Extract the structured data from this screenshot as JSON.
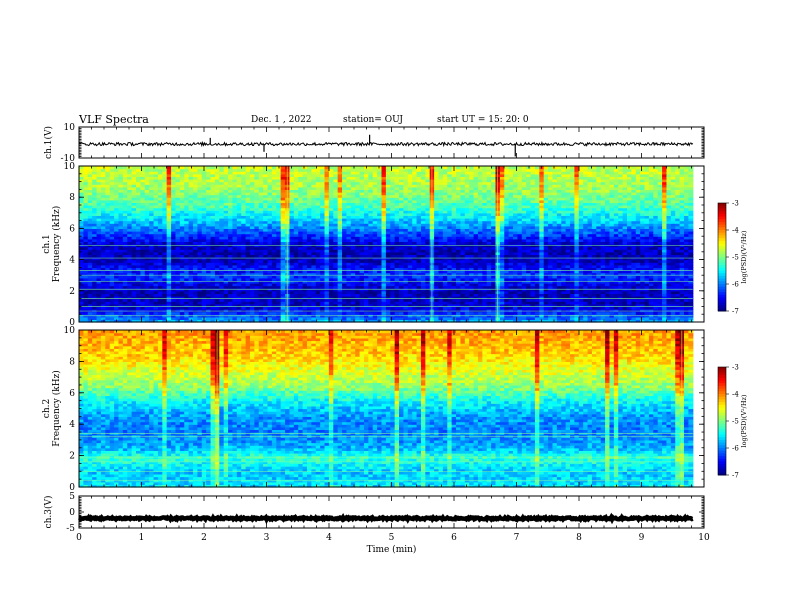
{
  "header": {
    "title": "VLF Spectra",
    "date": "Dec. 1  , 2022",
    "station": "station= OUJ",
    "start_ut": "start  UT  =   15: 20: 0"
  },
  "chart_data": [
    {
      "id": "ch1-waveform",
      "type": "line",
      "ylabel": "ch.1(V)",
      "ylim": [
        -10,
        10
      ],
      "yticks": [
        10,
        -10
      ],
      "xlim": [
        0,
        10
      ],
      "data_extent_min": 9.82,
      "baseline": -1,
      "amplitude": 1,
      "spikes": [
        {
          "x": 2.1,
          "y": 3
        },
        {
          "x": 2.96,
          "y": -6
        },
        {
          "x": 4.65,
          "y": 5
        },
        {
          "x": 6.98,
          "y": -9
        }
      ]
    },
    {
      "id": "ch1-spectrogram",
      "type": "heatmap",
      "ylabel_top": "ch.1",
      "ylabel": "Frequency  (kHz)",
      "ylim": [
        0,
        10
      ],
      "yticks": [
        0,
        2,
        4,
        6,
        8,
        10
      ],
      "xlim": [
        0,
        10
      ],
      "data_extent_min": 9.82,
      "colorbar": {
        "label": "log(PSD)(V²/Hz)",
        "range": [
          -7,
          -3
        ],
        "ticks": [
          -3,
          -4,
          -5,
          -6,
          -7
        ]
      },
      "profile": [
        {
          "f": 0.0,
          "v": -5.8
        },
        {
          "f": 0.5,
          "v": -6.3
        },
        {
          "f": 1.0,
          "v": -6.7
        },
        {
          "f": 2.0,
          "v": -6.8
        },
        {
          "f": 3.0,
          "v": -6.3
        },
        {
          "f": 3.5,
          "v": -6.5
        },
        {
          "f": 4.0,
          "v": -6.8
        },
        {
          "f": 5.0,
          "v": -6.7
        },
        {
          "f": 5.7,
          "v": -6.2
        },
        {
          "f": 6.5,
          "v": -5.7
        },
        {
          "f": 7.5,
          "v": -5.2
        },
        {
          "f": 8.5,
          "v": -4.9
        },
        {
          "f": 10.0,
          "v": -4.7
        }
      ],
      "lines": [
        0.4,
        0.7,
        1.0,
        1.5,
        2.1,
        2.6,
        3.0,
        3.3,
        4.1,
        4.9
      ]
    },
    {
      "id": "ch2-spectrogram",
      "type": "heatmap",
      "ylabel_top": "ch.2",
      "ylabel": "Frequency  (kHz)",
      "ylim": [
        0,
        10
      ],
      "yticks": [
        0,
        2,
        4,
        6,
        8,
        10
      ],
      "xlim": [
        0,
        10
      ],
      "data_extent_min": 9.82,
      "colorbar": {
        "label": "log(PSD)(V²/Hz)",
        "range": [
          -7,
          -3
        ],
        "ticks": [
          -3,
          -4,
          -5,
          -6,
          -7
        ]
      },
      "profile": [
        {
          "f": 0.0,
          "v": -5.6
        },
        {
          "f": 1.0,
          "v": -5.7
        },
        {
          "f": 1.9,
          "v": -5.3
        },
        {
          "f": 2.5,
          "v": -5.8
        },
        {
          "f": 3.5,
          "v": -6.0
        },
        {
          "f": 4.5,
          "v": -5.9
        },
        {
          "f": 5.5,
          "v": -5.5
        },
        {
          "f": 6.5,
          "v": -4.9
        },
        {
          "f": 7.5,
          "v": -4.6
        },
        {
          "f": 8.5,
          "v": -4.3
        },
        {
          "f": 10.0,
          "v": -4.1
        }
      ],
      "lines": [
        0.4,
        1.0,
        1.6,
        1.9,
        3.2,
        3.4
      ]
    },
    {
      "id": "ch3-waveform",
      "type": "line",
      "ylabel": "ch.3(V)",
      "ylim": [
        -5,
        5
      ],
      "yticks": [
        5,
        0,
        -5
      ],
      "xlim": [
        0,
        10
      ],
      "data_extent_min": 9.82,
      "baseline": -2,
      "amplitude": 0.3,
      "spikes": []
    }
  ],
  "xaxis": {
    "label": "Time  (min)",
    "ticks": [
      "0",
      "1",
      "2",
      "3",
      "4",
      "5",
      "6",
      "7",
      "8",
      "9",
      "10"
    ]
  }
}
